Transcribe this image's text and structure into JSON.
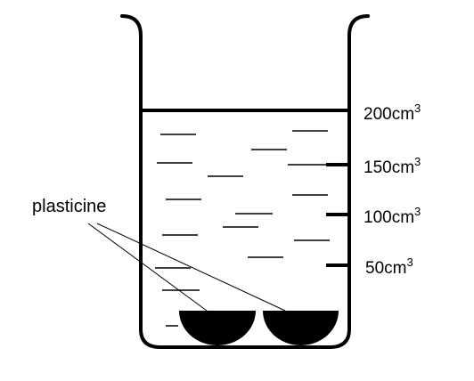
{
  "diagram": {
    "label": "plasticine",
    "graduations": [
      {
        "value": "200",
        "unit": "cm",
        "exponent": "3"
      },
      {
        "value": "150",
        "unit": "cm",
        "exponent": "3"
      },
      {
        "value": "100",
        "unit": "cm",
        "exponent": "3"
      },
      {
        "value": "50",
        "unit": "cm",
        "exponent": "3"
      }
    ],
    "colors": {
      "ink": "#000000",
      "background": "#ffffff"
    }
  }
}
